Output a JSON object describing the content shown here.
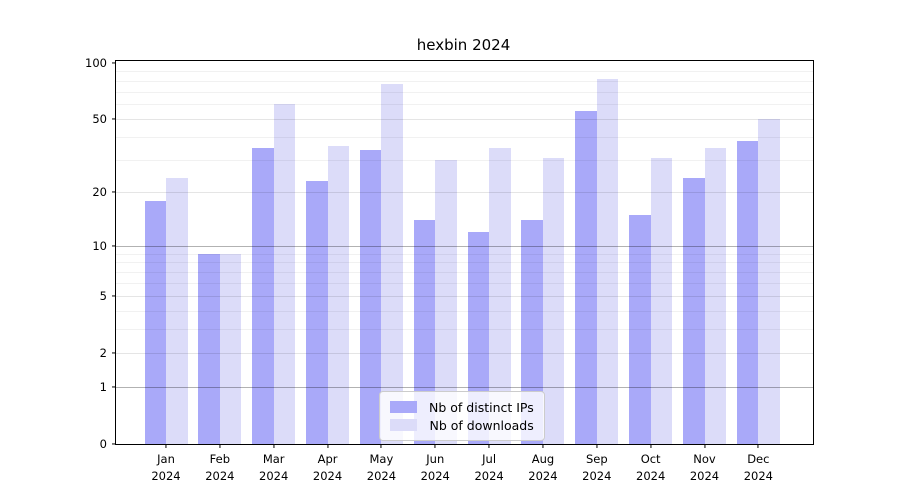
{
  "title": "hexbin 2024",
  "legend": {
    "items": [
      {
        "label": "Nb of distinct IPs",
        "color": "#a9a9f9"
      },
      {
        "label": "Nb of downloads",
        "color": "#dcdcf9"
      }
    ],
    "position": "lower center"
  },
  "chart_data": {
    "type": "bar",
    "title": "hexbin 2024",
    "categories": [
      "Jan",
      "Feb",
      "Mar",
      "Apr",
      "May",
      "Jun",
      "Jul",
      "Aug",
      "Sep",
      "Oct",
      "Nov",
      "Dec"
    ],
    "year_label": "2024",
    "series": [
      {
        "name": "Nb of distinct IPs",
        "color": "#a9a9f9",
        "values": [
          18,
          9,
          35,
          23,
          34,
          14,
          12,
          14,
          55,
          15,
          24,
          38
        ]
      },
      {
        "name": "Nb of downloads",
        "color": "#dcdcf9",
        "values": [
          24,
          9,
          60,
          36,
          77,
          30,
          35,
          31,
          82,
          31,
          35,
          50
        ]
      }
    ],
    "xlabel": "",
    "ylabel": "",
    "yscale": "log1p",
    "ylim": [
      0,
      100
    ],
    "yticks": [
      0,
      1,
      2,
      5,
      10,
      20,
      50,
      100
    ],
    "y_major_gridlines": [
      1,
      10
    ],
    "y_mid_gridlines": [
      2,
      5,
      20,
      50
    ],
    "y_minor_gridlines": [
      3,
      4,
      6,
      7,
      8,
      9,
      30,
      40,
      60,
      70,
      80,
      90
    ],
    "grid": true,
    "legend_position": "lower center"
  }
}
